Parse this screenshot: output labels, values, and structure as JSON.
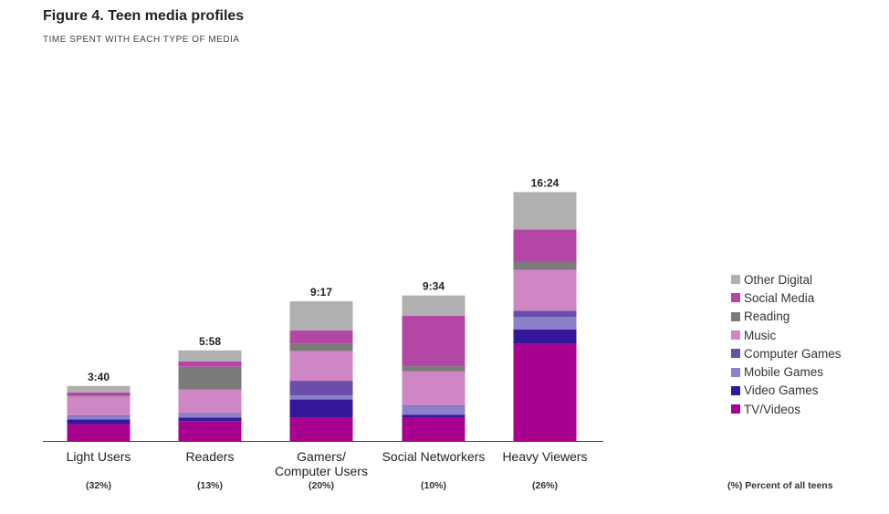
{
  "title": "Figure 4. Teen media profiles",
  "subtitle": "TIME SPENT WITH EACH TYPE OF MEDIA",
  "percent_note": "(%) Percent of all teens",
  "colors": {
    "TV/Videos": "#a8008f",
    "Video Games": "#35189a",
    "Mobile Games": "#8b80c9",
    "Computer Games": "#6a4eaa",
    "Music": "#cf86c4",
    "Reading": "#7a7b7a",
    "Social Media": "#b446a5",
    "Other Digital": "#b0b0b0"
  },
  "chart_data": {
    "type": "bar",
    "stacked": true,
    "unit": "hours:minutes per day",
    "categories": [
      "Light Users",
      "Readers",
      "Gamers/\nComputer Users",
      "Social Networkers",
      "Heavy Viewers"
    ],
    "category_labels": [
      "Light Users",
      "Readers",
      "Gamers/",
      "Social Networkers",
      "Heavy Viewers"
    ],
    "category_labels_line2": [
      "",
      "",
      "Computer Users",
      "",
      ""
    ],
    "percent_of_teens": [
      "(32%)",
      "(13%)",
      "(20%)",
      "(10%)",
      "(26%)"
    ],
    "totals": [
      "3:40",
      "5:58",
      "9:17",
      "9:34",
      "16:24"
    ],
    "series": [
      {
        "name": "TV/Videos",
        "values": [
          1.45,
          1.7,
          2.0,
          2.0,
          8.3
        ]
      },
      {
        "name": "Video Games",
        "values": [
          0.4,
          0.3,
          1.55,
          0.25,
          1.25
        ]
      },
      {
        "name": "Mobile Games",
        "values": [
          0.3,
          0.35,
          0.35,
          0.75,
          1.05
        ]
      },
      {
        "name": "Computer Games",
        "values": [
          0.05,
          0.05,
          1.25,
          0.05,
          0.55
        ]
      },
      {
        "name": "Music",
        "values": [
          1.6,
          2.0,
          2.55,
          2.9,
          3.5
        ]
      },
      {
        "name": "Reading",
        "values": [
          0.05,
          1.95,
          0.65,
          0.45,
          0.7
        ]
      },
      {
        "name": "Social Media",
        "values": [
          0.3,
          0.45,
          1.1,
          4.3,
          2.75
        ]
      },
      {
        "name": "Other Digital",
        "values": [
          0.55,
          0.95,
          2.5,
          1.75,
          3.2
        ]
      }
    ],
    "legend_order": [
      "Other Digital",
      "Social Media",
      "Reading",
      "Music",
      "Computer Games",
      "Mobile Games",
      "Video Games",
      "TV/Videos"
    ],
    "legend_position": "right",
    "ylim": [
      0,
      21
    ],
    "grid": false
  }
}
